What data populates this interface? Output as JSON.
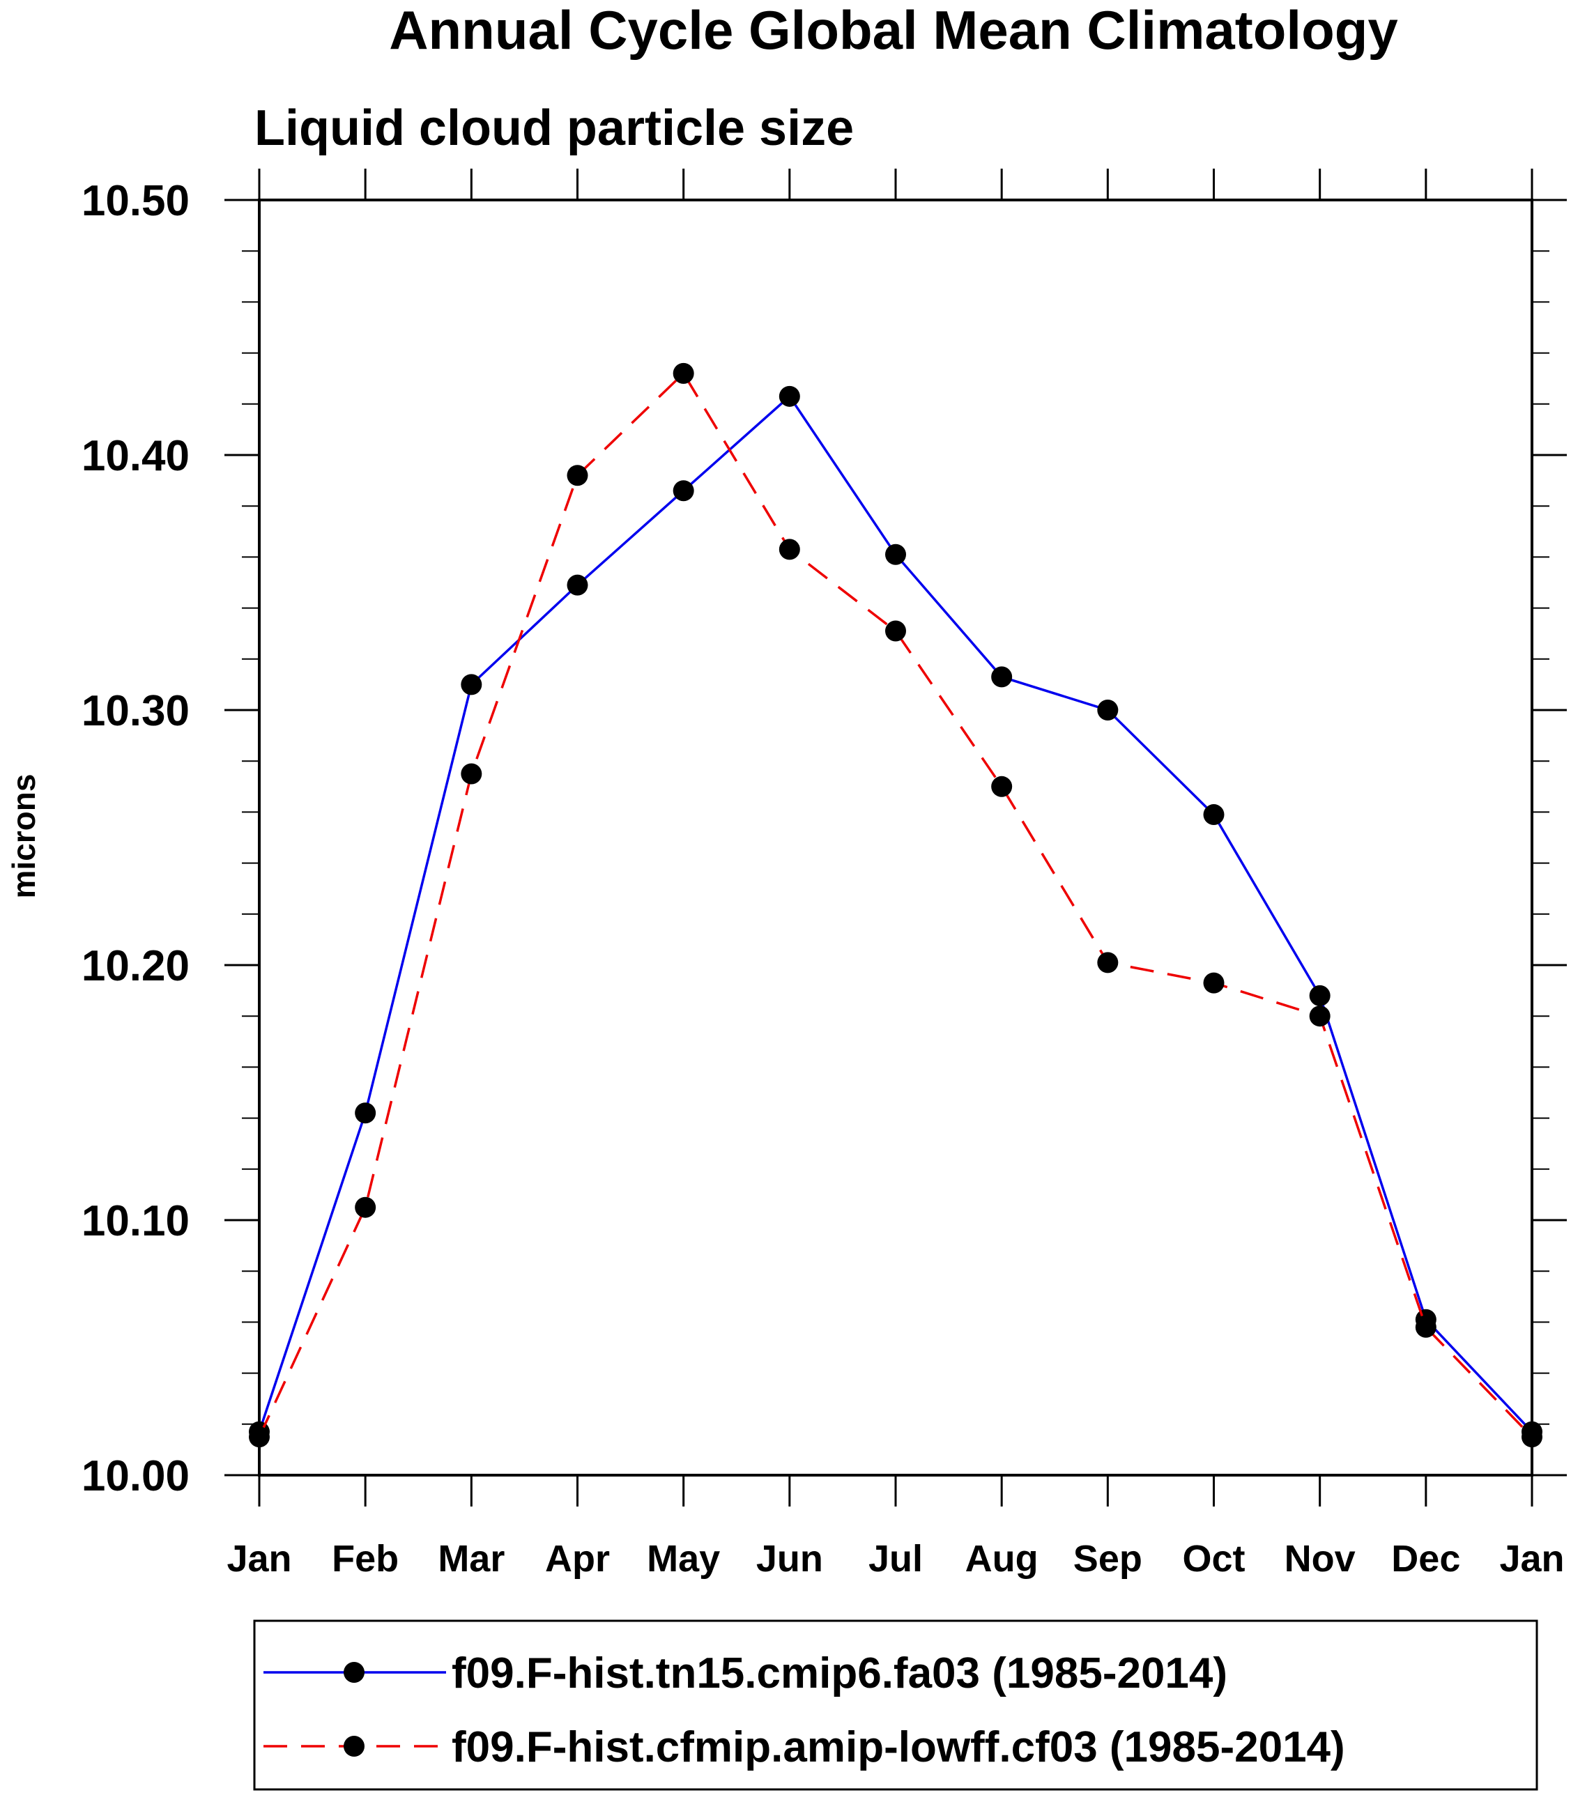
{
  "chart_data": {
    "type": "line",
    "title": "Annual Cycle Global Mean Climatology",
    "subtitle": "Liquid cloud particle size",
    "xlabel": "",
    "ylabel": "microns",
    "categories": [
      "Jan",
      "Feb",
      "Mar",
      "Apr",
      "May",
      "Jun",
      "Jul",
      "Aug",
      "Sep",
      "Oct",
      "Nov",
      "Dec",
      "Jan"
    ],
    "ylim": [
      10.0,
      10.5
    ],
    "yticks": [
      "10.00",
      "10.10",
      "10.20",
      "10.30",
      "10.40",
      "10.50"
    ],
    "grid": false,
    "legend_position": "bottom",
    "series": [
      {
        "name": "f09.F-hist.tn15.cmip6.fa03 (1985-2014)",
        "color": "#0000ee",
        "dash": "solid",
        "marker": "filled-circle",
        "values": [
          10.017,
          10.142,
          10.31,
          10.349,
          10.386,
          10.423,
          10.361,
          10.313,
          10.3,
          10.259,
          10.188,
          10.061,
          10.017
        ]
      },
      {
        "name": "f09.F-hist.cfmip.amip-lowff.cf03 (1985-2014)",
        "color": "#ee0000",
        "dash": "dashed",
        "marker": "filled-circle",
        "values": [
          10.015,
          10.105,
          10.275,
          10.392,
          10.432,
          10.363,
          10.331,
          10.27,
          10.201,
          10.193,
          10.18,
          10.058,
          10.015
        ]
      }
    ]
  }
}
